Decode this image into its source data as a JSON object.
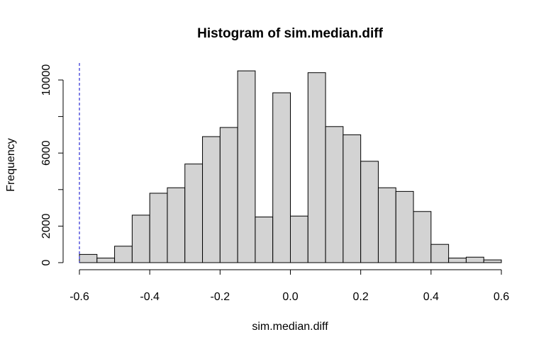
{
  "chart_data": {
    "type": "bar",
    "title": "Histogram of sim.median.diff",
    "xlabel": "sim.median.diff",
    "ylabel": "Frequency",
    "xlim": [
      -0.6,
      0.6
    ],
    "ylim": [
      0,
      10800
    ],
    "x_ticks": [
      -0.6,
      -0.4,
      -0.2,
      0.0,
      0.2,
      0.4,
      0.6
    ],
    "x_tick_labels": [
      "-0.6",
      "-0.4",
      "-0.2",
      "0.0",
      "0.2",
      "0.4",
      "0.6"
    ],
    "y_ticks": [
      0,
      2000,
      6000,
      10000
    ],
    "y_tick_labels": [
      "0",
      "2000",
      "6000",
      "10000"
    ],
    "bin_width": 0.05,
    "bin_edges_start": -0.6,
    "values": [
      450,
      250,
      900,
      2600,
      3800,
      4100,
      5400,
      6900,
      7400,
      10500,
      2500,
      9300,
      2550,
      10400,
      7450,
      7000,
      5550,
      4100,
      3900,
      2800,
      1000,
      250,
      300,
      150
    ],
    "bar_fill": "#d3d3d3",
    "bar_stroke": "#000000",
    "reference_line": {
      "x": -0.6,
      "color": "#0000cc",
      "style": "dashed"
    },
    "grid": false,
    "legend": "none"
  }
}
